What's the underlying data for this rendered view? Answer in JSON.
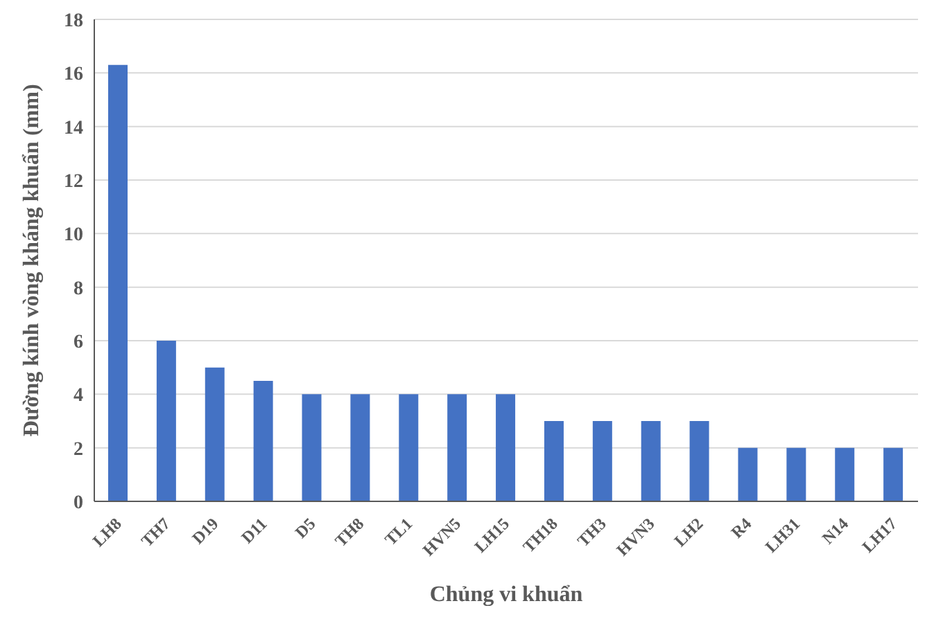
{
  "chart_data": {
    "type": "bar",
    "xlabel": "Chủng vi khuẩn",
    "ylabel": "Đường kính vòng kháng khuẩn (mm)",
    "categories": [
      "LH8",
      "TH7",
      "D19",
      "D11",
      "D5",
      "TH8",
      "TL1",
      "HVN5",
      "LH15",
      "TH18",
      "TH3",
      "HVN3",
      "LH2",
      "R4",
      "LH31",
      "N14",
      "LH17"
    ],
    "values": [
      16.3,
      6,
      5,
      4.5,
      4,
      4,
      4,
      4,
      4,
      3,
      3,
      3,
      3,
      2,
      2,
      2,
      2
    ],
    "color": "#4472c4",
    "ylim": [
      0,
      18
    ],
    "yticks": [
      0,
      2,
      4,
      6,
      8,
      10,
      12,
      14,
      16,
      18
    ],
    "grid": "y"
  }
}
